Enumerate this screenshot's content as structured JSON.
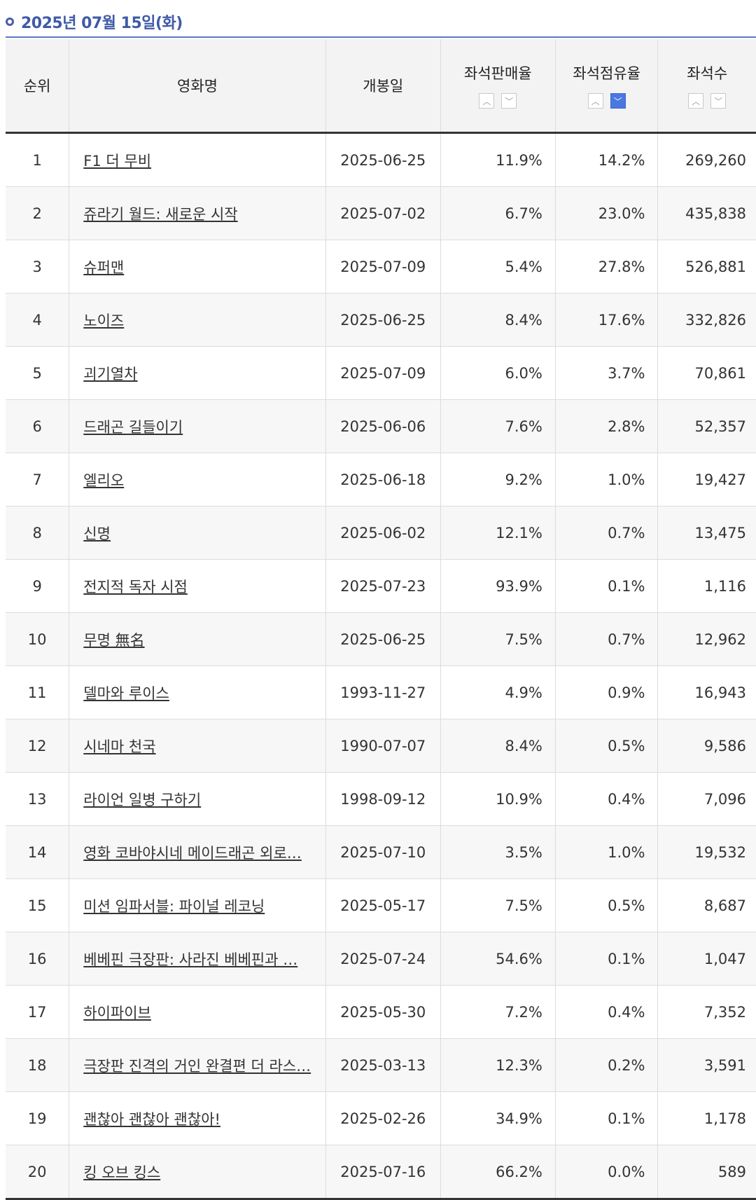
{
  "header": {
    "date": "2025년 07월 15일(화)"
  },
  "table": {
    "columns": {
      "rank": "순위",
      "title": "영화명",
      "release": "개봉일",
      "sales_rate": "좌석판매율",
      "share_rate": "좌석점유율",
      "seats": "좌석수"
    },
    "sort": {
      "up": "▲",
      "down": "▼",
      "active_column": "좌석점유율",
      "active_direction": "down"
    },
    "rows": [
      {
        "rank": "1",
        "title": "F1 더 무비",
        "release": "2025-06-25",
        "sales_rate": "11.9%",
        "share_rate": "14.2%",
        "seats": "269,260"
      },
      {
        "rank": "2",
        "title": "쥬라기 월드: 새로운 시작",
        "release": "2025-07-02",
        "sales_rate": "6.7%",
        "share_rate": "23.0%",
        "seats": "435,838"
      },
      {
        "rank": "3",
        "title": "슈퍼맨",
        "release": "2025-07-09",
        "sales_rate": "5.4%",
        "share_rate": "27.8%",
        "seats": "526,881"
      },
      {
        "rank": "4",
        "title": "노이즈",
        "release": "2025-06-25",
        "sales_rate": "8.4%",
        "share_rate": "17.6%",
        "seats": "332,826"
      },
      {
        "rank": "5",
        "title": "괴기열차",
        "release": "2025-07-09",
        "sales_rate": "6.0%",
        "share_rate": "3.7%",
        "seats": "70,861"
      },
      {
        "rank": "6",
        "title": "드래곤 길들이기",
        "release": "2025-06-06",
        "sales_rate": "7.6%",
        "share_rate": "2.8%",
        "seats": "52,357"
      },
      {
        "rank": "7",
        "title": "엘리오",
        "release": "2025-06-18",
        "sales_rate": "9.2%",
        "share_rate": "1.0%",
        "seats": "19,427"
      },
      {
        "rank": "8",
        "title": "신명",
        "release": "2025-06-02",
        "sales_rate": "12.1%",
        "share_rate": "0.7%",
        "seats": "13,475"
      },
      {
        "rank": "9",
        "title": "전지적 독자 시점",
        "release": "2025-07-23",
        "sales_rate": "93.9%",
        "share_rate": "0.1%",
        "seats": "1,116"
      },
      {
        "rank": "10",
        "title": "무명 無名",
        "release": "2025-06-25",
        "sales_rate": "7.5%",
        "share_rate": "0.7%",
        "seats": "12,962"
      },
      {
        "rank": "11",
        "title": "델마와 루이스",
        "release": "1993-11-27",
        "sales_rate": "4.9%",
        "share_rate": "0.9%",
        "seats": "16,943"
      },
      {
        "rank": "12",
        "title": "시네마 천국",
        "release": "1990-07-07",
        "sales_rate": "8.4%",
        "share_rate": "0.5%",
        "seats": "9,586"
      },
      {
        "rank": "13",
        "title": "라이언 일병 구하기",
        "release": "1998-09-12",
        "sales_rate": "10.9%",
        "share_rate": "0.4%",
        "seats": "7,096"
      },
      {
        "rank": "14",
        "title": "영화 코바야시네 메이드래곤 외로…",
        "release": "2025-07-10",
        "sales_rate": "3.5%",
        "share_rate": "1.0%",
        "seats": "19,532"
      },
      {
        "rank": "15",
        "title": "미션 임파서블: 파이널 레코닝",
        "release": "2025-05-17",
        "sales_rate": "7.5%",
        "share_rate": "0.5%",
        "seats": "8,687"
      },
      {
        "rank": "16",
        "title": "베베핀 극장판: 사라진 베베핀과 …",
        "release": "2025-07-24",
        "sales_rate": "54.6%",
        "share_rate": "0.1%",
        "seats": "1,047"
      },
      {
        "rank": "17",
        "title": "하이파이브",
        "release": "2025-05-30",
        "sales_rate": "7.2%",
        "share_rate": "0.4%",
        "seats": "7,352"
      },
      {
        "rank": "18",
        "title": "극장판 진격의 거인 완결편 더 라스…",
        "release": "2025-03-13",
        "sales_rate": "12.3%",
        "share_rate": "0.2%",
        "seats": "3,591"
      },
      {
        "rank": "19",
        "title": "괜찮아 괜찮아 괜찮아!",
        "release": "2025-02-26",
        "sales_rate": "34.9%",
        "share_rate": "0.1%",
        "seats": "1,178"
      },
      {
        "rank": "20",
        "title": "킹 오브 킹스",
        "release": "2025-07-16",
        "sales_rate": "66.2%",
        "share_rate": "0.0%",
        "seats": "589"
      }
    ]
  },
  "colors": {
    "accent": "#4b78e0",
    "date_text": "#3f5aa8",
    "header_bg": "#f3f3f3",
    "even_row_bg": "#f7f7f7"
  }
}
